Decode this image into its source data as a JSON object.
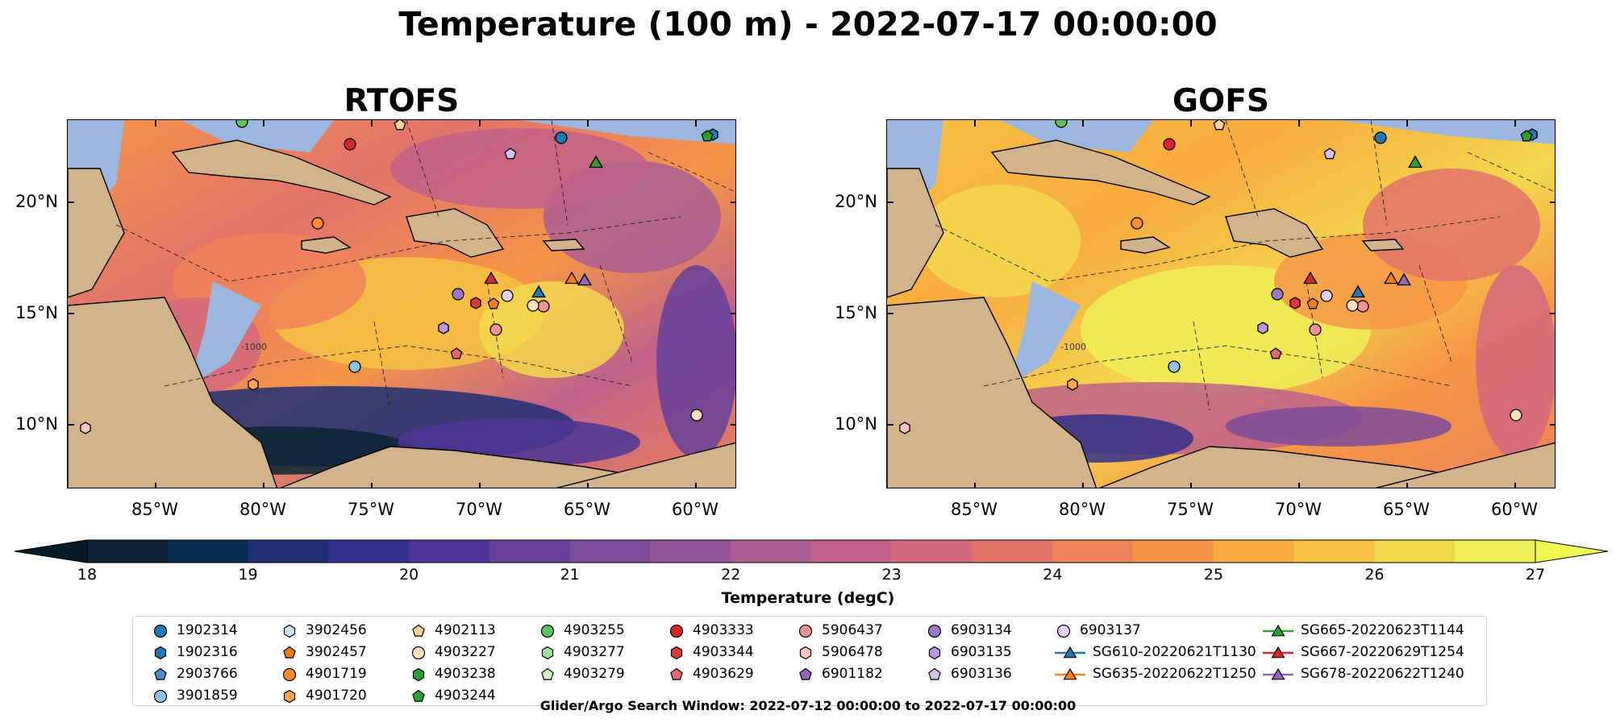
{
  "title": "Temperature (100 m) - 2022-07-17 00:00:00",
  "panels": [
    {
      "title": "RTOFS"
    },
    {
      "title": "GOFS"
    }
  ],
  "map": {
    "lat_ticks": [
      "20°N",
      "15°N",
      "10°N"
    ],
    "lon_ticks": [
      "85°W",
      "80°W",
      "75°W",
      "70°W",
      "65°W",
      "60°W"
    ],
    "land_color": "#d2b48c",
    "shelf_color": "#9bb7e0",
    "contour_label": "-1000"
  },
  "colorbar": {
    "label": "Temperature (degC)",
    "ticks": [
      "18",
      "19",
      "20",
      "21",
      "22",
      "23",
      "24",
      "25",
      "26",
      "27"
    ],
    "colors": [
      "#0a2434",
      "#0b2c54",
      "#1e2f74",
      "#33308a",
      "#4d3596",
      "#66409a",
      "#7d4c9a",
      "#955599",
      "#ab5e94",
      "#c0628a",
      "#d2687c",
      "#e2736b",
      "#ee8258",
      "#f59647",
      "#f8ab3f",
      "#f7c242",
      "#f3d84c",
      "#eeee55"
    ],
    "min_extend_color": "#051c28",
    "max_extend_color": "#f0f550"
  },
  "legend": {
    "columns": [
      [
        {
          "label": "1902314",
          "marker": "circle",
          "color": "#1f77b4"
        },
        {
          "label": "1902316",
          "marker": "hexagon",
          "color": "#1f77b4"
        },
        {
          "label": "2903766",
          "marker": "pentagon",
          "color": "#4b8dc8"
        },
        {
          "label": "3901859",
          "marker": "circle",
          "color": "#8ec2e8"
        }
      ],
      [
        {
          "label": "3902456",
          "marker": "hexagon",
          "color": "#c6e2f5"
        },
        {
          "label": "3902457",
          "marker": "pentagon",
          "color": "#ef7d11"
        },
        {
          "label": "4901719",
          "marker": "circle",
          "color": "#ff8c2e"
        },
        {
          "label": "4901720",
          "marker": "hexagon",
          "color": "#ffa64d"
        }
      ],
      [
        {
          "label": "4902113",
          "marker": "pentagon",
          "color": "#ffd29a"
        },
        {
          "label": "4903227",
          "marker": "circle",
          "color": "#ffe0bd"
        },
        {
          "label": "4903238",
          "marker": "hexagon",
          "color": "#2ca02c"
        },
        {
          "label": "4903244",
          "marker": "pentagon",
          "color": "#2ca02c"
        }
      ],
      [
        {
          "label": "4903255",
          "marker": "circle",
          "color": "#5cc25c"
        },
        {
          "label": "4903277",
          "marker": "hexagon",
          "color": "#9ee29e"
        },
        {
          "label": "4903279",
          "marker": "pentagon",
          "color": "#d2f5c8"
        }
      ],
      [
        {
          "label": "4903333",
          "marker": "circle",
          "color": "#d62728"
        },
        {
          "label": "4903344",
          "marker": "hexagon",
          "color": "#dd3b3b"
        },
        {
          "label": "4903629",
          "marker": "pentagon",
          "color": "#e8676a"
        }
      ],
      [
        {
          "label": "5906437",
          "marker": "circle",
          "color": "#f4938f"
        },
        {
          "label": "5906478",
          "marker": "hexagon",
          "color": "#fbc3c0"
        },
        {
          "label": "6901182",
          "marker": "pentagon",
          "color": "#9467bd"
        }
      ],
      [
        {
          "label": "6903134",
          "marker": "circle",
          "color": "#9e78c8"
        },
        {
          "label": "6903135",
          "marker": "hexagon",
          "color": "#b99ad8"
        },
        {
          "label": "6903136",
          "marker": "pentagon",
          "color": "#d6c2ee"
        }
      ],
      [
        {
          "label": "6903137",
          "marker": "circle",
          "color": "#e3d1f5"
        },
        {
          "label": "SG610-20220621T1130",
          "marker": "triangle-line",
          "color": "#1f77b4"
        },
        {
          "label": "SG635-20220622T1250",
          "marker": "triangle-line",
          "color": "#ff7f0e"
        }
      ],
      [
        {
          "label": "SG665-20220623T1144",
          "marker": "triangle-line",
          "color": "#2ca02c"
        },
        {
          "label": "SG667-20220629T1254",
          "marker": "triangle-line",
          "color": "#d62728"
        },
        {
          "label": "SG678-20220622T1240",
          "marker": "triangle-line",
          "color": "#9467bd"
        }
      ]
    ]
  },
  "footer": "Glider/Argo Search Window: 2022-07-12 00:00:00 to 2022-07-17 00:00:00"
}
